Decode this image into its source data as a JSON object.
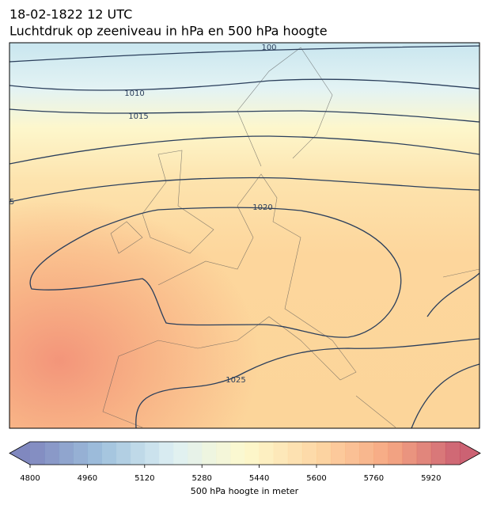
{
  "header": {
    "title": "18-02-1822 12 UTC",
    "subtitle": "Luchtdruk op zeeniveau in hPa en 500 hPa hoogte"
  },
  "contour_labels": [
    "100",
    "1010",
    "1015",
    "1020",
    "1025",
    "5"
  ],
  "colorbar": {
    "label": "500 hPa hoogte in meter",
    "lim": [
      4800,
      6000
    ],
    "step": 40,
    "ticks": [
      4800,
      4960,
      5120,
      5280,
      5440,
      5600,
      5760,
      5920
    ],
    "colormap": [
      "#6a73b4",
      "#8fb6d6",
      "#d8edf2",
      "#fdf8c4",
      "#fdd095",
      "#f59a6e",
      "#c3475b"
    ]
  }
}
